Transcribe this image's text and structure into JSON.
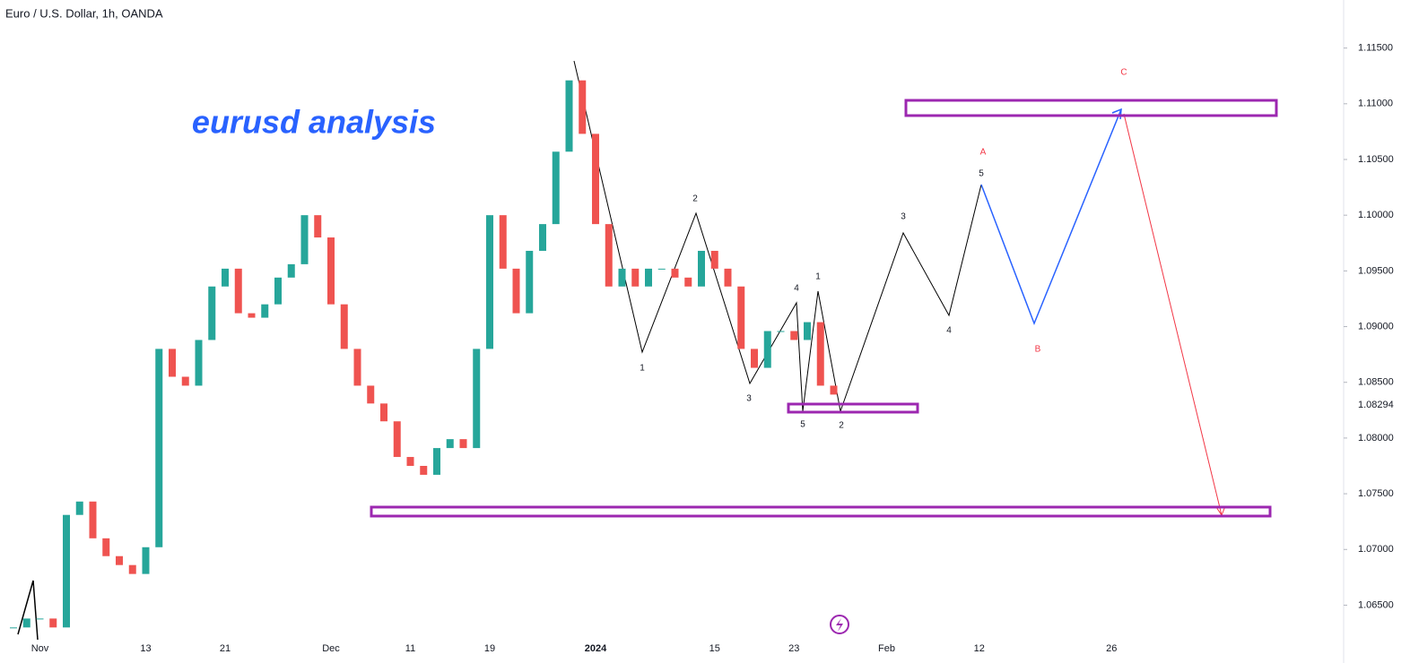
{
  "chart_data": {
    "type": "candle-close",
    "title": "Euro / U.S. Dollar, 1h, OANDA",
    "annotation": "eurusd analysis",
    "categories": [
      null,
      null,
      "Nov",
      null,
      null,
      null,
      null,
      null,
      null,
      null,
      "13",
      null,
      null,
      null,
      null,
      null,
      "21",
      null,
      null,
      null,
      null,
      null,
      null,
      null,
      "Dec",
      null,
      null,
      null,
      null,
      null,
      "11",
      null,
      null,
      null,
      null,
      null,
      "19",
      null,
      null,
      null,
      null,
      null,
      null,
      null,
      "2024",
      null,
      null,
      null,
      null,
      null,
      null,
      null,
      null,
      "15",
      null,
      null,
      null,
      null,
      null,
      "23",
      null,
      null,
      null,
      null,
      null,
      null,
      "Feb",
      null,
      null,
      null,
      null,
      null,
      null,
      "12",
      null,
      null,
      null,
      null,
      null,
      null,
      null,
      null,
      null,
      "26",
      null,
      null,
      null,
      null,
      null,
      null,
      null,
      null,
      null,
      null,
      null,
      null,
      null,
      null,
      null,
      null,
      null
    ],
    "values": [
      1.063,
      1.0638,
      1.0638,
      1.063,
      1.0731,
      1.0743,
      1.071,
      1.0694,
      1.0686,
      1.0678,
      1.0702,
      1.088,
      1.0855,
      1.0847,
      1.0888,
      1.0936,
      1.0952,
      1.0912,
      1.0908,
      1.092,
      1.0944,
      1.0956,
      1.1,
      1.098,
      1.092,
      1.088,
      1.0847,
      1.0831,
      1.0815,
      1.0783,
      1.0775,
      1.0767,
      1.0791,
      1.0799,
      1.0791,
      1.088,
      1.1,
      1.0952,
      1.0912,
      1.0968,
      1.0992,
      1.1057,
      1.1121,
      1.1073,
      1.0992,
      1.0936,
      1.0952,
      1.0936,
      1.0952,
      1.0952,
      1.0944,
      1.0936,
      1.0968,
      1.0952,
      1.0936,
      1.088,
      1.0863,
      1.0896,
      1.0896,
      1.0888,
      1.0904,
      1.0847,
      1.0839,
      null,
      null,
      null,
      null,
      null,
      null,
      null,
      null,
      null,
      null,
      null,
      null,
      null,
      null,
      null,
      null,
      null,
      null,
      null,
      null,
      null,
      null,
      null,
      null,
      null,
      null,
      null,
      null,
      null,
      null,
      null,
      null,
      null,
      null,
      null,
      null,
      null,
      null
    ],
    "up_color": "#26a69a",
    "down_color": "#ef5350",
    "ylim": [
      1.0619,
      1.1169
    ],
    "yticks": [
      {
        "value": 1.065,
        "label": "1.06500"
      },
      {
        "value": 1.07,
        "label": "1.07000"
      },
      {
        "value": 1.075,
        "label": "1.07500"
      },
      {
        "value": 1.08,
        "label": "1.08000"
      },
      {
        "value": 1.085,
        "label": "1.08500"
      },
      {
        "value": 1.09,
        "label": "1.09000"
      },
      {
        "value": 1.095,
        "label": "1.09500"
      },
      {
        "value": 1.1,
        "label": "1.10000"
      },
      {
        "value": 1.105,
        "label": "1.10500"
      },
      {
        "value": 1.11,
        "label": "1.11000"
      },
      {
        "value": 1.115,
        "label": "1.11500"
      }
    ],
    "last_price": 1.08294,
    "wave_labels": [
      "1",
      "2",
      "3",
      "4",
      "5",
      "1",
      "2",
      "3",
      "4",
      "5"
    ],
    "correction_labels": [
      "A",
      "B",
      "C"
    ]
  }
}
